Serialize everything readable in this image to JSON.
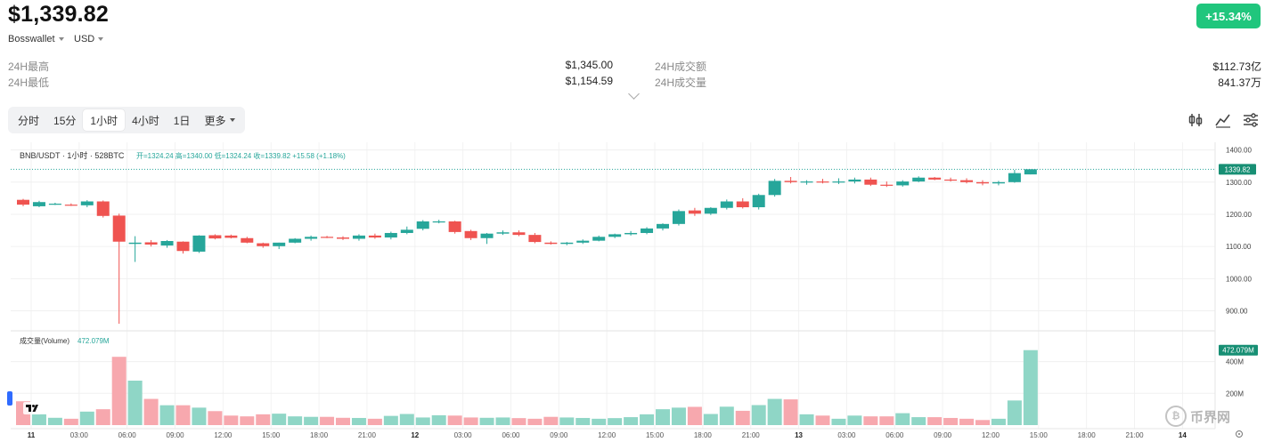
{
  "header": {
    "price": "$1,339.82",
    "change": "+15.34%",
    "wallet": "Bosswallet",
    "currency": "USD"
  },
  "stats": {
    "high_label": "24H最高",
    "high_value": "$1,345.00",
    "low_label": "24H最低",
    "low_value": "$1,154.59",
    "turnover_label": "24H成交额",
    "turnover_value": "$112.73亿",
    "volume_label": "24H成交量",
    "volume_value": "841.37万"
  },
  "tabs": [
    "分时",
    "15分",
    "1小时",
    "4小时",
    "1日",
    "更多"
  ],
  "active_tab": "1小时",
  "legend": {
    "symbol": "BNB/USDT · 1小时 · 528BTC",
    "ohlc": "开=1324.24  高=1340.00  低=1324.24  收=1339.82  +15.58 (+1.18%)",
    "volume_label": "成交量(Volume)",
    "volume_value": "472.079M"
  },
  "watermark": "币界网",
  "chart_data": {
    "type": "candlestick",
    "title": "BNB/USDT · 1小时",
    "price_axis": {
      "ticks": [
        900,
        1000,
        1100,
        1200,
        1300,
        1400
      ],
      "labels": [
        "900.00",
        "1000.00",
        "1100.00",
        "1200.00",
        "1300.00",
        "1400.00"
      ],
      "range": [
        860,
        1410
      ]
    },
    "last_price": {
      "value": 1339.82,
      "label": "1339.82"
    },
    "volume_axis": {
      "ticks": [
        200,
        400
      ],
      "labels": [
        "200M",
        "400M"
      ],
      "range": [
        0,
        560
      ]
    },
    "last_volume": {
      "value": 472.079,
      "label": "472.079M"
    },
    "time_labels": [
      "11",
      "03:00",
      "06:00",
      "09:00",
      "12:00",
      "15:00",
      "18:00",
      "21:00",
      "12",
      "03:00",
      "06:00",
      "09:00",
      "12:00",
      "15:00",
      "18:00",
      "21:00",
      "13",
      "03:00",
      "06:00",
      "09:00",
      "12:00",
      "15:00",
      "18:00",
      "21:00",
      "14"
    ],
    "time_label_bars": [
      1,
      4,
      7,
      10,
      13,
      16,
      19,
      22,
      25,
      28,
      31,
      34,
      37,
      40,
      43,
      46,
      49,
      52,
      55,
      58,
      61,
      64,
      67,
      70,
      73
    ],
    "ohlc": [
      [
        1245,
        1248,
        1225,
        1230
      ],
      [
        1225,
        1242,
        1222,
        1238
      ],
      [
        1232,
        1236,
        1229,
        1233
      ],
      [
        1230,
        1234,
        1226,
        1228
      ],
      [
        1228,
        1244,
        1222,
        1240
      ],
      [
        1240,
        1243,
        1190,
        1195
      ],
      [
        1196,
        1202,
        860,
        1115
      ],
      [
        1108,
        1132,
        1052,
        1112
      ],
      [
        1113,
        1120,
        1100,
        1106
      ],
      [
        1103,
        1120,
        1096,
        1117
      ],
      [
        1115,
        1116,
        1078,
        1086
      ],
      [
        1084,
        1135,
        1080,
        1134
      ],
      [
        1135,
        1138,
        1122,
        1125
      ],
      [
        1134,
        1137,
        1125,
        1127
      ],
      [
        1126,
        1130,
        1110,
        1112
      ],
      [
        1110,
        1112,
        1096,
        1101
      ],
      [
        1101,
        1112,
        1092,
        1112
      ],
      [
        1112,
        1126,
        1110,
        1124
      ],
      [
        1124,
        1134,
        1118,
        1130
      ],
      [
        1130,
        1133,
        1126,
        1128
      ],
      [
        1128,
        1132,
        1120,
        1124
      ],
      [
        1124,
        1138,
        1118,
        1134
      ],
      [
        1134,
        1140,
        1124,
        1128
      ],
      [
        1128,
        1146,
        1122,
        1142
      ],
      [
        1142,
        1162,
        1138,
        1152
      ],
      [
        1155,
        1182,
        1150,
        1178
      ],
      [
        1176,
        1183,
        1172,
        1178
      ],
      [
        1178,
        1180,
        1140,
        1145
      ],
      [
        1148,
        1152,
        1120,
        1126
      ],
      [
        1126,
        1142,
        1108,
        1140
      ],
      [
        1140,
        1150,
        1136,
        1144
      ],
      [
        1144,
        1150,
        1132,
        1136
      ],
      [
        1136,
        1142,
        1110,
        1114
      ],
      [
        1112,
        1116,
        1106,
        1108
      ],
      [
        1108,
        1114,
        1104,
        1112
      ],
      [
        1112,
        1122,
        1108,
        1118
      ],
      [
        1118,
        1134,
        1116,
        1130
      ],
      [
        1130,
        1140,
        1126,
        1138
      ],
      [
        1138,
        1148,
        1134,
        1142
      ],
      [
        1142,
        1160,
        1138,
        1156
      ],
      [
        1156,
        1172,
        1150,
        1170
      ],
      [
        1170,
        1215,
        1165,
        1210
      ],
      [
        1212,
        1220,
        1195,
        1202
      ],
      [
        1202,
        1222,
        1198,
        1220
      ],
      [
        1220,
        1246,
        1215,
        1240
      ],
      [
        1240,
        1250,
        1218,
        1222
      ],
      [
        1222,
        1264,
        1215,
        1260
      ],
      [
        1260,
        1310,
        1255,
        1304
      ],
      [
        1304,
        1316,
        1296,
        1300
      ],
      [
        1300,
        1306,
        1292,
        1302
      ],
      [
        1302,
        1310,
        1296,
        1300
      ],
      [
        1300,
        1312,
        1294,
        1302
      ],
      [
        1302,
        1314,
        1296,
        1308
      ],
      [
        1308,
        1314,
        1288,
        1292
      ],
      [
        1292,
        1302,
        1285,
        1290
      ],
      [
        1290,
        1306,
        1286,
        1302
      ],
      [
        1302,
        1318,
        1300,
        1314
      ],
      [
        1314,
        1316,
        1306,
        1308
      ],
      [
        1308,
        1314,
        1302,
        1306
      ],
      [
        1306,
        1312,
        1296,
        1300
      ],
      [
        1300,
        1306,
        1290,
        1296
      ],
      [
        1296,
        1304,
        1290,
        1300
      ],
      [
        1300,
        1338,
        1298,
        1328
      ],
      [
        1324,
        1340,
        1324,
        1340
      ]
    ],
    "volume": [
      150,
      68,
      46,
      40,
      85,
      100,
      430,
      280,
      165,
      125,
      125,
      110,
      88,
      60,
      55,
      68,
      72,
      55,
      52,
      52,
      46,
      45,
      40,
      58,
      70,
      48,
      62,
      60,
      48,
      46,
      48,
      44,
      40,
      52,
      48,
      45,
      40,
      44,
      50,
      68,
      100,
      110,
      115,
      70,
      116,
      90,
      126,
      165,
      162,
      68,
      60,
      40,
      60,
      55,
      55,
      75,
      50,
      50,
      45,
      40,
      32,
      40,
      155,
      472
    ]
  }
}
